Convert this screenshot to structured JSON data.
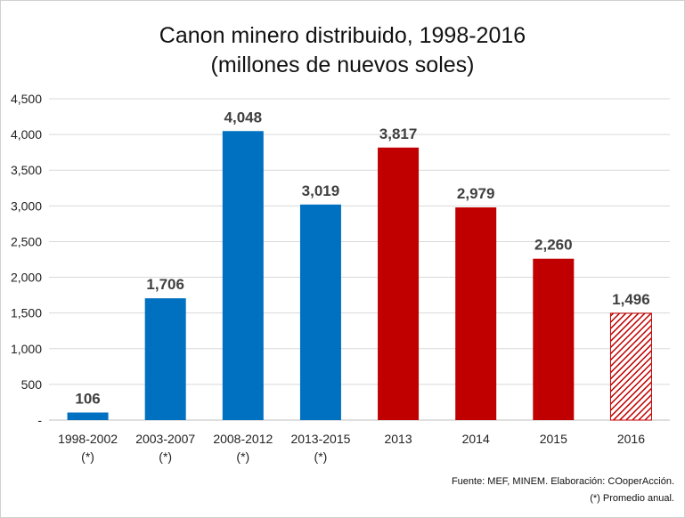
{
  "chart_data": {
    "type": "bar",
    "title_lines": [
      "Canon minero distribuido, 1998-2016",
      "(millones de nuevos soles)"
    ],
    "categories": [
      {
        "line1": "1998-2002",
        "line2": "(*)"
      },
      {
        "line1": "2003-2007",
        "line2": "(*)"
      },
      {
        "line1": "2008-2012",
        "line2": "(*)"
      },
      {
        "line1": "2013-2015",
        "line2": "(*)"
      },
      {
        "line1": "2013",
        "line2": ""
      },
      {
        "line1": "2014",
        "line2": ""
      },
      {
        "line1": "2015",
        "line2": ""
      },
      {
        "line1": "2016",
        "line2": ""
      }
    ],
    "values": [
      106,
      1706,
      4048,
      3019,
      3817,
      2979,
      2260,
      1496
    ],
    "value_labels": [
      "106",
      "1,706",
      "4,048",
      "3,019",
      "3,817",
      "2,979",
      "2,260",
      "1,496"
    ],
    "bar_styles": [
      "blue",
      "blue",
      "blue",
      "blue",
      "red",
      "red",
      "red",
      "hatched-red"
    ],
    "colors": {
      "blue": "#0070c0",
      "red": "#c00000",
      "hatch_fill": "#ffffff"
    },
    "ylim": [
      0,
      4500
    ],
    "yticks": [
      0,
      500,
      1000,
      1500,
      2000,
      2500,
      3000,
      3500,
      4000,
      4500
    ],
    "ytick_labels": [
      "-",
      "500",
      "1,000",
      "1,500",
      "2,000",
      "2,500",
      "3,000",
      "3,500",
      "4,000",
      "4,500"
    ],
    "grid": true,
    "xlabel": "",
    "ylabel": ""
  },
  "footer": {
    "source": "Fuente:  MEF,  MINEM. Elaboración: COoperAcción.",
    "note": "(*) Promedio anual."
  }
}
